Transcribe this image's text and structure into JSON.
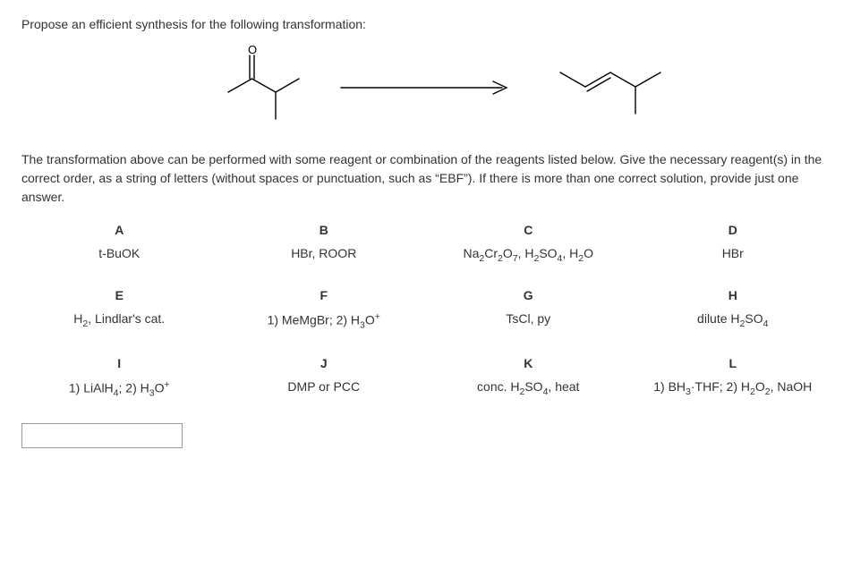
{
  "prompt_line": "Propose an efficient synthesis for the following transformation:",
  "instructions": "The transformation above can be performed with some reagent or combination of the reagents listed below. Give the necessary reagent(s) in the correct order, as a string of letters (without spaces or punctuation, such as “EBF”). If there is more than one correct solution, provide just one answer.",
  "diagram": {
    "reactant": "3-methyl-2-butanone skeletal",
    "arrow": "long arrow",
    "product": "2-methyl-2-butene skeletal",
    "stroke_color": "#000000",
    "stroke_width": 1.4
  },
  "reagents": {
    "headers": [
      "A",
      "B",
      "C",
      "D",
      "E",
      "F",
      "G",
      "H",
      "I",
      "J",
      "K",
      "L"
    ],
    "items": [
      {
        "key": "A",
        "html": "t-BuOK"
      },
      {
        "key": "B",
        "html": "HBr, ROOR"
      },
      {
        "key": "C",
        "html": "Na<sub>2</sub>Cr<sub>2</sub>O<sub>7</sub>, H<sub>2</sub>SO<sub>4</sub>, H<sub>2</sub>O"
      },
      {
        "key": "D",
        "html": "HBr"
      },
      {
        "key": "E",
        "html": "H<sub>2</sub>, Lindlar's cat."
      },
      {
        "key": "F",
        "html": "1) MeMgBr; 2) H<sub>3</sub>O<sup>+</sup>"
      },
      {
        "key": "G",
        "html": "TsCl, py"
      },
      {
        "key": "H",
        "html": "dilute H<sub>2</sub>SO<sub>4</sub>"
      },
      {
        "key": "I",
        "html": "1) LiAlH<sub>4</sub>; 2) H<sub>3</sub>O<sup>+</sup>"
      },
      {
        "key": "J",
        "html": "DMP or PCC"
      },
      {
        "key": "K",
        "html": "conc. H<sub>2</sub>SO<sub>4</sub>, heat"
      },
      {
        "key": "L",
        "html": "1) BH<sub>3</sub>·THF; 2) H<sub>2</sub>O<sub>2</sub>, NaOH"
      }
    ]
  },
  "answer": {
    "value": "",
    "placeholder": ""
  },
  "colors": {
    "text": "#333333",
    "background": "#ffffff",
    "border": "#999999"
  }
}
